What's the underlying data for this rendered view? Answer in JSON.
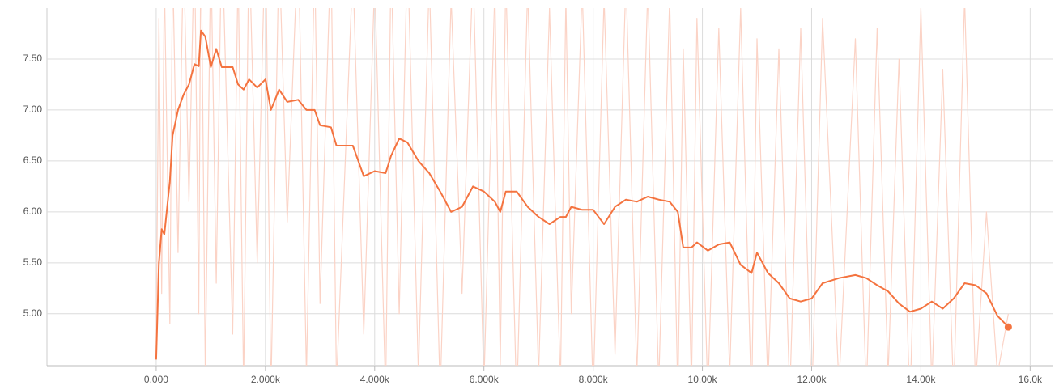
{
  "chart_data": {
    "type": "line",
    "x": [
      0,
      50,
      100,
      150,
      250,
      300,
      400,
      500,
      600,
      700,
      780,
      820,
      900,
      1000,
      1100,
      1200,
      1400,
      1500,
      1600,
      1700,
      1850,
      2000,
      2100,
      2250,
      2400,
      2600,
      2750,
      2900,
      3000,
      3200,
      3300,
      3600,
      3800,
      4000,
      4200,
      4300,
      4450,
      4600,
      4800,
      5000,
      5200,
      5400,
      5600,
      5800,
      6000,
      6200,
      6300,
      6400,
      6600,
      6800,
      7000,
      7200,
      7400,
      7500,
      7600,
      7800,
      8000,
      8200,
      8400,
      8600,
      8800,
      9000,
      9200,
      9400,
      9550,
      9650,
      9800,
      9900,
      10100,
      10300,
      10500,
      10700,
      10900,
      11000,
      11200,
      11400,
      11600,
      11800,
      12000,
      12200,
      12500,
      12800,
      13000,
      13200,
      13400,
      13600,
      13800,
      14000,
      14200,
      14400,
      14600,
      14800,
      15000,
      15200,
      15400,
      15600
    ],
    "series": [
      {
        "color": "#fbd3c6",
        "values": [
          4.6,
          7.9,
          5.2,
          8.3,
          4.9,
          8.5,
          5.6,
          8.6,
          6.1,
          8.7,
          5.0,
          8.9,
          4.4,
          8.6,
          5.3,
          8.8,
          4.8,
          8.4,
          4.3,
          8.7,
          5.5,
          8.8,
          4.2,
          8.6,
          5.9,
          8.7,
          4.4,
          8.5,
          5.1,
          8.6,
          4.3,
          8.4,
          4.8,
          8.3,
          4.2,
          8.5,
          5.0,
          8.6,
          4.4,
          8.3,
          4.2,
          8.1,
          5.2,
          8.4,
          4.3,
          8.2,
          4.5,
          8.3,
          4.1,
          8.2,
          4.4,
          8.0,
          4.3,
          8.1,
          5.0,
          8.2,
          4.2,
          8.1,
          4.6,
          8.3,
          4.4,
          8.2,
          4.3,
          8.1,
          4.2,
          7.6,
          4.3,
          7.9,
          4.2,
          7.8,
          4.4,
          8.0,
          4.1,
          7.7,
          4.3,
          7.6,
          4.2,
          7.8,
          4.1,
          7.9,
          4.3,
          7.7,
          4.2,
          7.8,
          4.4,
          7.5,
          4.1,
          8.0,
          4.3,
          7.4,
          4.2,
          8.1,
          4.3,
          6.0,
          4.4,
          5.0
        ]
      },
      {
        "color": "#f4733f",
        "values": [
          4.55,
          5.5,
          5.83,
          5.78,
          6.3,
          6.75,
          7.0,
          7.15,
          7.25,
          7.45,
          7.43,
          7.78,
          7.72,
          7.42,
          7.6,
          7.42,
          7.42,
          7.25,
          7.2,
          7.3,
          7.22,
          7.3,
          7.0,
          7.2,
          7.08,
          7.1,
          7.0,
          7.0,
          6.85,
          6.83,
          6.65,
          6.65,
          6.35,
          6.4,
          6.38,
          6.55,
          6.72,
          6.68,
          6.5,
          6.38,
          6.2,
          6.0,
          6.05,
          6.25,
          6.2,
          6.1,
          6.0,
          6.2,
          6.2,
          6.05,
          5.95,
          5.88,
          5.95,
          5.95,
          6.05,
          6.02,
          6.02,
          5.88,
          6.05,
          6.12,
          6.1,
          6.15,
          6.12,
          6.1,
          6.0,
          5.65,
          5.65,
          5.7,
          5.62,
          5.68,
          5.7,
          5.48,
          5.4,
          5.6,
          5.4,
          5.3,
          5.15,
          5.12,
          5.15,
          5.3,
          5.35,
          5.38,
          5.35,
          5.28,
          5.22,
          5.1,
          5.02,
          5.05,
          5.12,
          5.05,
          5.15,
          5.3,
          5.28,
          5.2,
          4.98,
          4.87
        ]
      }
    ],
    "xlim": [
      -2000,
      16410
    ],
    "xticks": [
      {
        "value": 0,
        "label": "0.000"
      },
      {
        "value": 2000,
        "label": "2.000k"
      },
      {
        "value": 4000,
        "label": "4.000k"
      },
      {
        "value": 6000,
        "label": "6.000k"
      },
      {
        "value": 8000,
        "label": "8.000k"
      },
      {
        "value": 10000,
        "label": "10.00k"
      },
      {
        "value": 12000,
        "label": "12.00k"
      },
      {
        "value": 14000,
        "label": "14.00k"
      },
      {
        "value": 16000,
        "label": "16.0k"
      }
    ],
    "ylim": [
      4.49,
      8.0
    ],
    "yticks": [
      {
        "value": 5,
        "label": "5.00"
      },
      {
        "value": 5.5,
        "label": "5.50"
      },
      {
        "value": 6,
        "label": "6.00"
      },
      {
        "value": 6.5,
        "label": "6.50"
      },
      {
        "value": 7,
        "label": "7.00"
      },
      {
        "value": 7.5,
        "label": "7.50"
      }
    ],
    "grid": true
  }
}
